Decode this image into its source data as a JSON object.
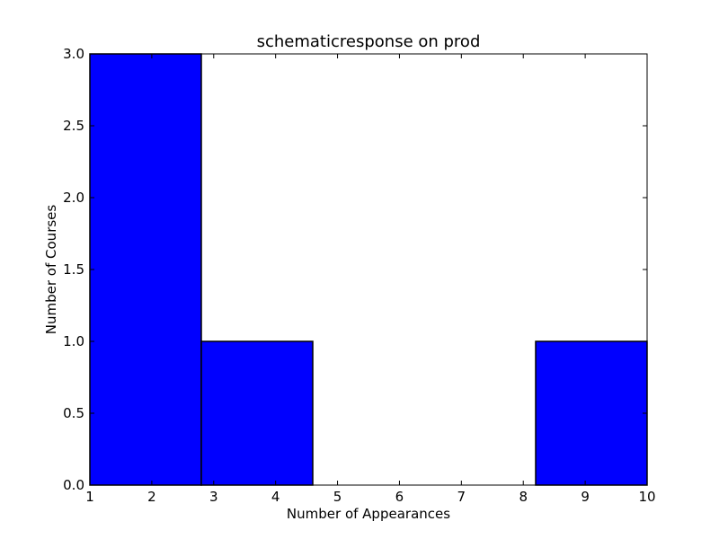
{
  "chart_data": {
    "type": "bar",
    "title": "schematicresponse on prod",
    "xlabel": "Number of Appearances",
    "ylabel": "Number of Courses",
    "xlim": [
      1,
      10
    ],
    "ylim": [
      0,
      3
    ],
    "xticks": [
      "1",
      "2",
      "3",
      "4",
      "5",
      "6",
      "7",
      "8",
      "9",
      "10"
    ],
    "yticks": [
      "0.0",
      "0.5",
      "1.0",
      "1.5",
      "2.0",
      "2.5",
      "3.0"
    ],
    "bins": [
      {
        "x_start": 1.0,
        "x_end": 2.8,
        "value": 3
      },
      {
        "x_start": 2.8,
        "x_end": 4.6,
        "value": 1
      },
      {
        "x_start": 4.6,
        "x_end": 6.4,
        "value": 0
      },
      {
        "x_start": 6.4,
        "x_end": 8.2,
        "value": 0
      },
      {
        "x_start": 8.2,
        "x_end": 10.0,
        "value": 1
      }
    ],
    "bar_color": "#0000ff",
    "grid": false
  }
}
